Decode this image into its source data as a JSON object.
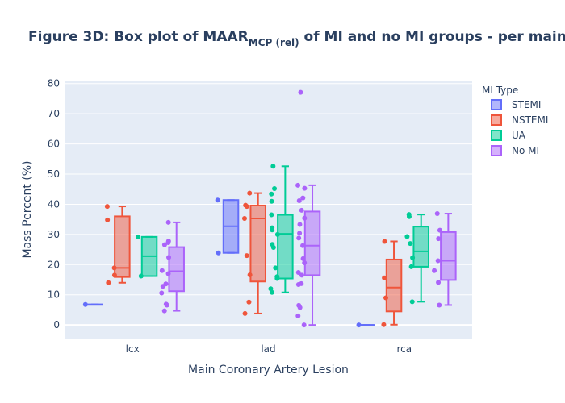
{
  "chart_data": {
    "type": "box",
    "title": {
      "main": "Figure 3D: Box plot of MAAR",
      "sub": "MCP (rel)",
      "rest": " of MI and no MI groups - per main"
    },
    "xlabel": "Main Coronary Artery Lesion",
    "ylabel": "Mass Percent (%)",
    "categories": [
      "lcx",
      "lad",
      "rca"
    ],
    "ylim": [
      -4.5,
      81
    ],
    "yticks": [
      0,
      10,
      20,
      30,
      40,
      50,
      60,
      70,
      80
    ],
    "grid": true,
    "legend": {
      "title": "MI Type",
      "placement": "right"
    },
    "series": [
      {
        "name": "STEMI",
        "color": "#636efa",
        "boxes": [
          {
            "category": "lcx",
            "q1": 6.8,
            "median": 6.8,
            "q3": 6.8,
            "whisker_low": 6.8,
            "whisker_high": 6.8,
            "points": [
              6.8
            ]
          },
          {
            "category": "lad",
            "q1": 23.9,
            "median": 32.7,
            "q3": 41.4,
            "whisker_low": 23.9,
            "whisker_high": 41.4,
            "points": [
              23.9,
              41.4
            ]
          },
          {
            "category": "rca",
            "q1": 0,
            "median": 0,
            "q3": 0,
            "whisker_low": 0,
            "whisker_high": 0,
            "points": [
              0
            ]
          }
        ]
      },
      {
        "name": "NSTEMI",
        "color": "#ef553b",
        "boxes": [
          {
            "category": "lcx",
            "q1": 15.9,
            "median": 18.9,
            "q3": 36.0,
            "whisker_low": 14.0,
            "whisker_high": 39.3,
            "points": [
              39.3,
              34.8,
              18.9,
              16.5,
              14.0
            ]
          },
          {
            "category": "lad",
            "q1": 14.4,
            "median": 35.3,
            "q3": 39.6,
            "whisker_low": 3.8,
            "whisker_high": 43.7,
            "points": [
              43.7,
              39.7,
              39.3,
              35.3,
              23.0,
              16.6,
              7.6,
              3.8
            ]
          },
          {
            "category": "rca",
            "q1": 4.5,
            "median": 12.4,
            "q3": 21.7,
            "whisker_low": 0.1,
            "whisker_high": 27.7,
            "points": [
              27.7,
              15.6,
              9.0,
              0.1
            ]
          }
        ]
      },
      {
        "name": "UA",
        "color": "#00cc96",
        "boxes": [
          {
            "category": "lcx",
            "q1": 16.2,
            "median": 22.8,
            "q3": 29.2,
            "whisker_low": 16.2,
            "whisker_high": 29.2,
            "points": [
              29.2,
              16.2
            ]
          },
          {
            "category": "lad",
            "q1": 15.4,
            "median": 30.2,
            "q3": 36.5,
            "whisker_low": 10.8,
            "whisker_high": 52.6,
            "points": [
              52.6,
              45.2,
              43.4,
              41.0,
              36.5,
              32.2,
              31.5,
              30.0,
              26.7,
              25.7,
              18.9,
              16.0,
              15.4,
              12.0,
              10.8
            ]
          },
          {
            "category": "rca",
            "q1": 19.3,
            "median": 24.4,
            "q3": 32.6,
            "whisker_low": 7.7,
            "whisker_high": 36.6,
            "points": [
              36.6,
              35.9,
              29.3,
              27.0,
              22.3,
              19.3,
              7.7
            ]
          }
        ]
      },
      {
        "name": "No MI",
        "color": "#ab63fa",
        "boxes": [
          {
            "category": "lcx",
            "q1": 11.2,
            "median": 17.8,
            "q3": 25.8,
            "whisker_low": 4.7,
            "whisker_high": 34.0,
            "points": [
              34.0,
              27.8,
              27.3,
              26.6,
              22.4,
              18.0,
              17.0,
              13.6,
              12.8,
              10.6,
              6.9,
              6.6,
              4.7
            ]
          },
          {
            "category": "lad",
            "q1": 16.5,
            "median": 26.3,
            "q3": 37.6,
            "whisker_low": 0,
            "whisker_high": 46.3,
            "points": [
              77.1,
              46.3,
              45.3,
              42.1,
              41.2,
              38.0,
              35.4,
              33.3,
              30.4,
              28.8,
              26.3,
              22.0,
              20.6,
              17.4,
              16.5,
              13.7,
              13.4,
              6.5,
              5.8,
              3.0,
              0
            ]
          },
          {
            "category": "rca",
            "q1": 14.9,
            "median": 21.3,
            "q3": 30.8,
            "whisker_low": 6.6,
            "whisker_high": 36.9,
            "points": [
              36.9,
              31.4,
              28.6,
              21.3,
              18.0,
              14.1,
              6.6
            ]
          }
        ]
      }
    ]
  }
}
